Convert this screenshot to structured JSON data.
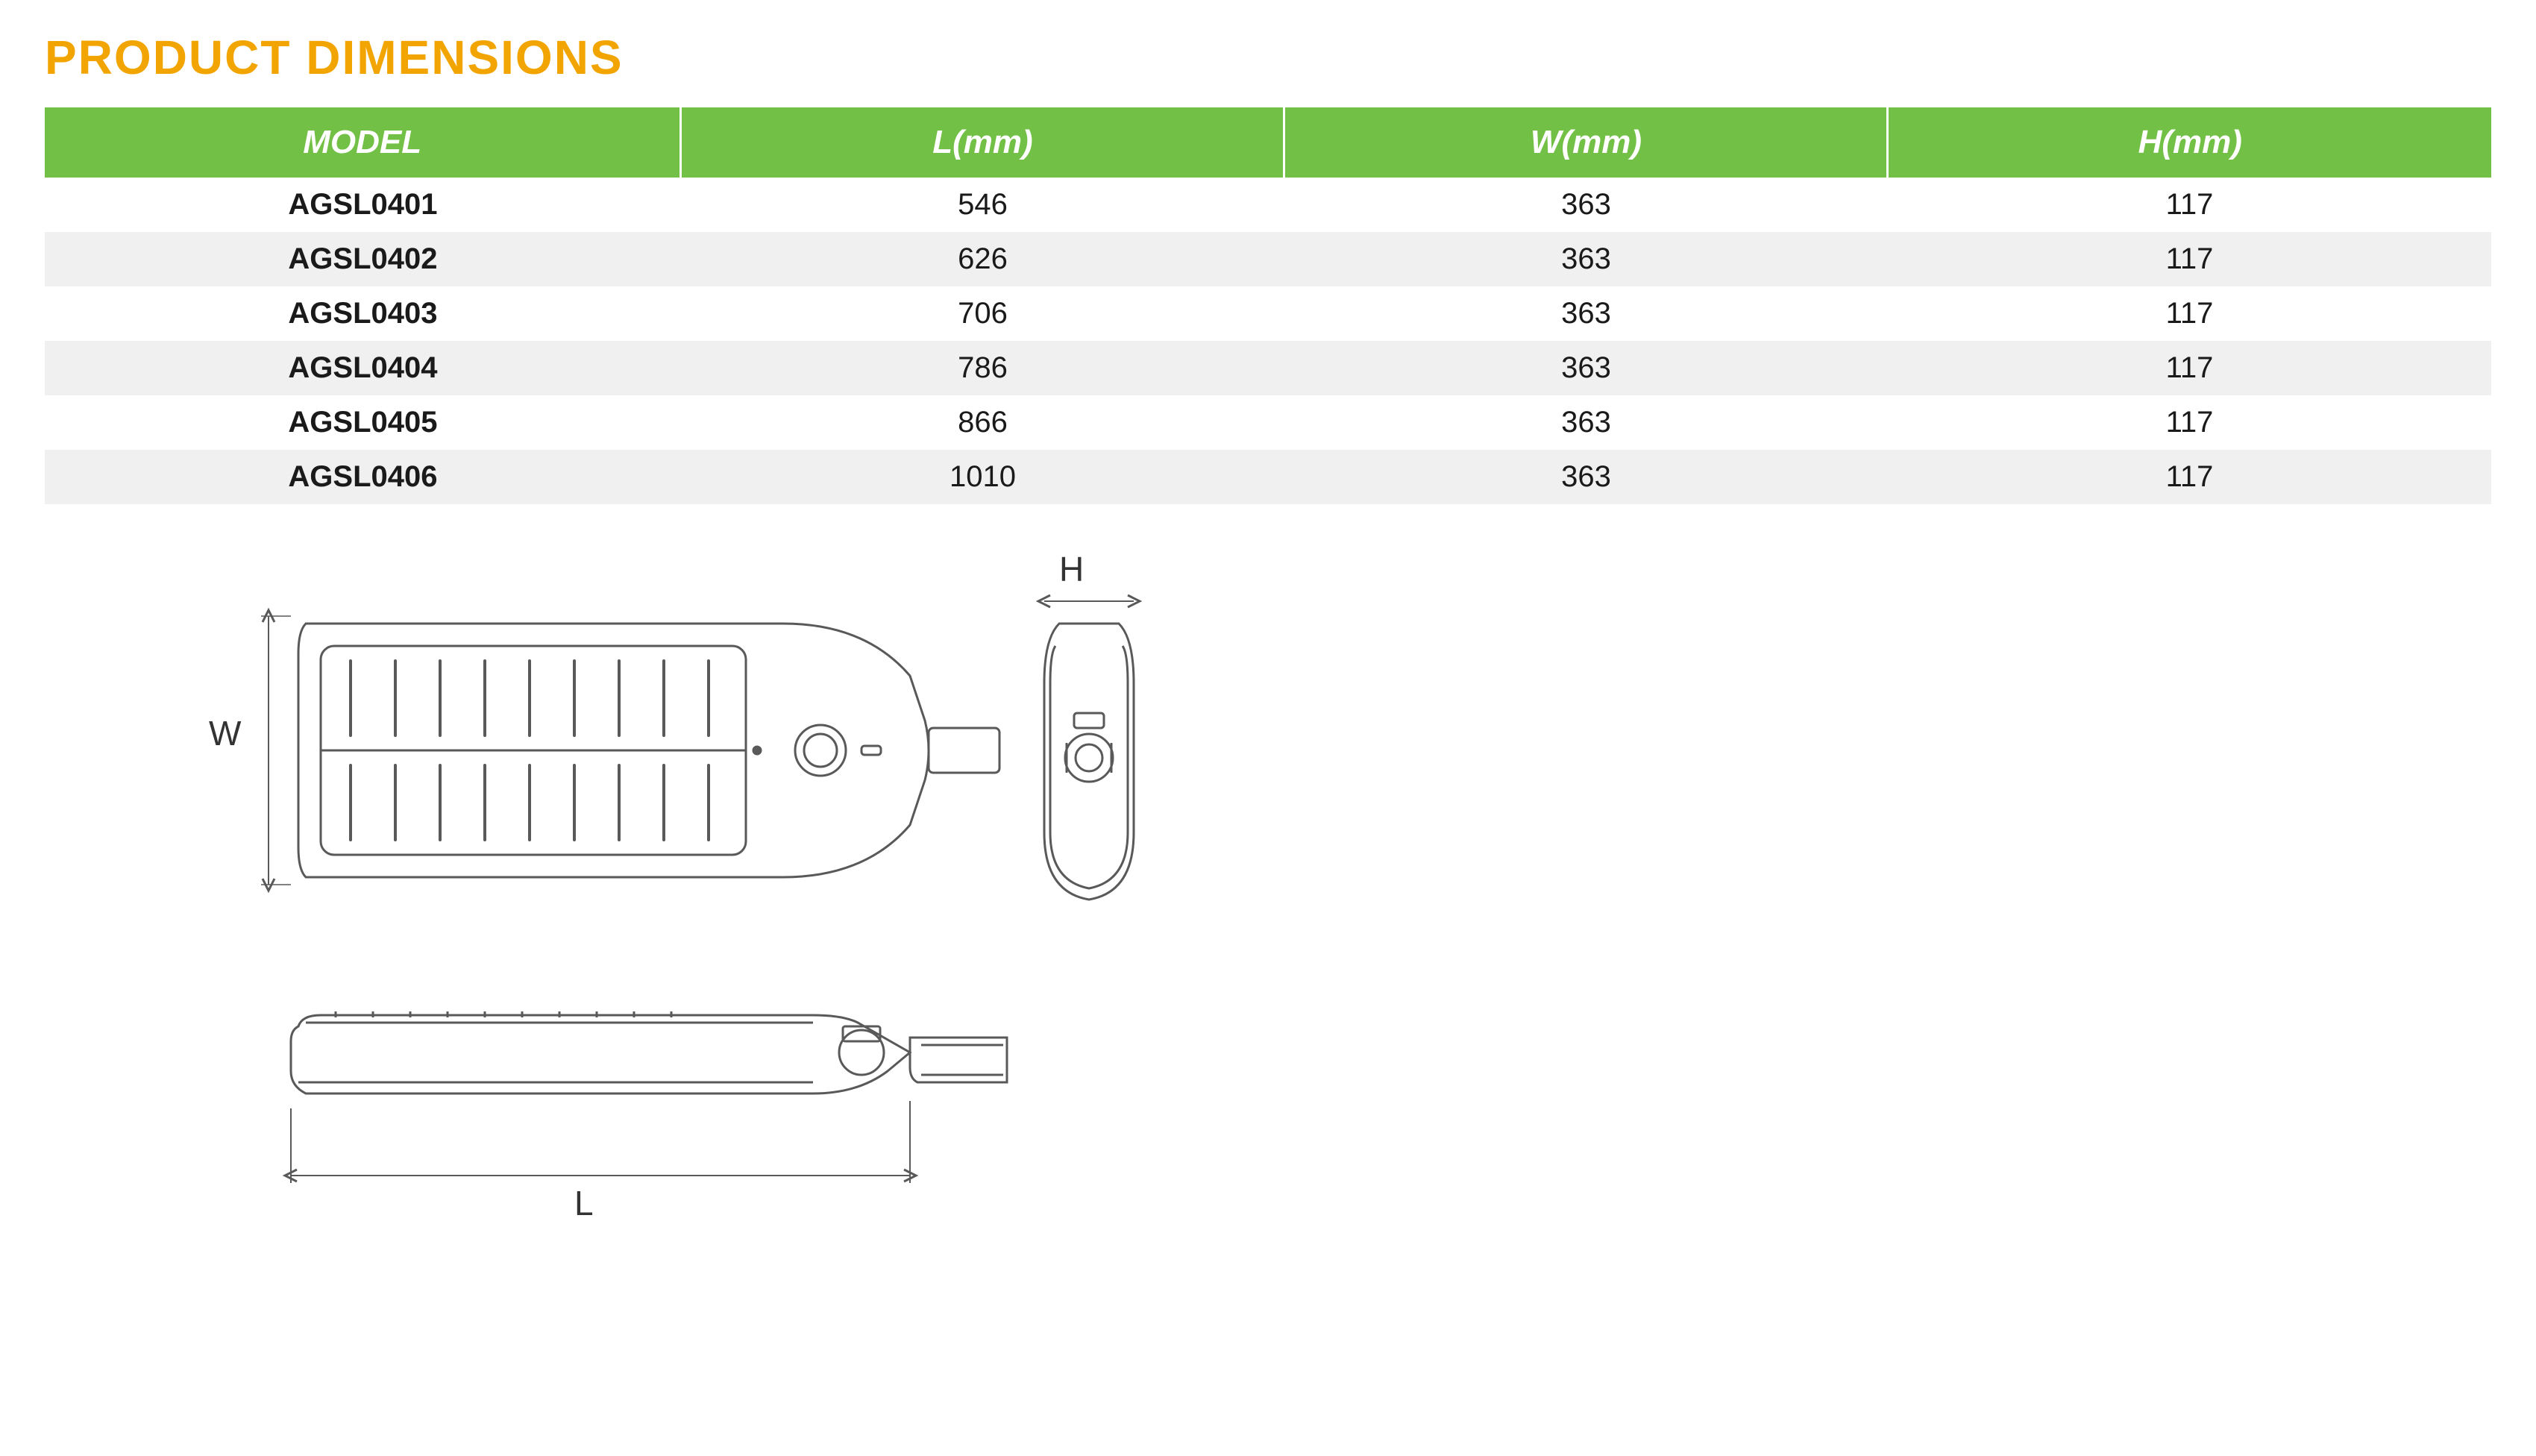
{
  "title": {
    "text": "PRODUCT DIMENSIONS",
    "color": "#f2a500",
    "fontsize": 64
  },
  "table": {
    "header_bg": "#73c047",
    "header_fg": "#ffffff",
    "row_alt_bg": "#f0f0f0",
    "columns": [
      "MODEL",
      "L(mm)",
      "W(mm)",
      "H(mm)"
    ],
    "rows": [
      [
        "AGSL0401",
        "546",
        "363",
        "117"
      ],
      [
        "AGSL0402",
        "626",
        "363",
        "117"
      ],
      [
        "AGSL0403",
        "706",
        "363",
        "117"
      ],
      [
        "AGSL0404",
        "786",
        "363",
        "117"
      ],
      [
        "AGSL0405",
        "866",
        "363",
        "117"
      ],
      [
        "AGSL0406",
        "1010",
        "363",
        "117"
      ]
    ]
  },
  "diagram": {
    "stroke": "#595959",
    "stroke_width": 2,
    "labels": {
      "W": "W",
      "L": "L",
      "H": "H"
    },
    "label_fontsize": 46
  }
}
